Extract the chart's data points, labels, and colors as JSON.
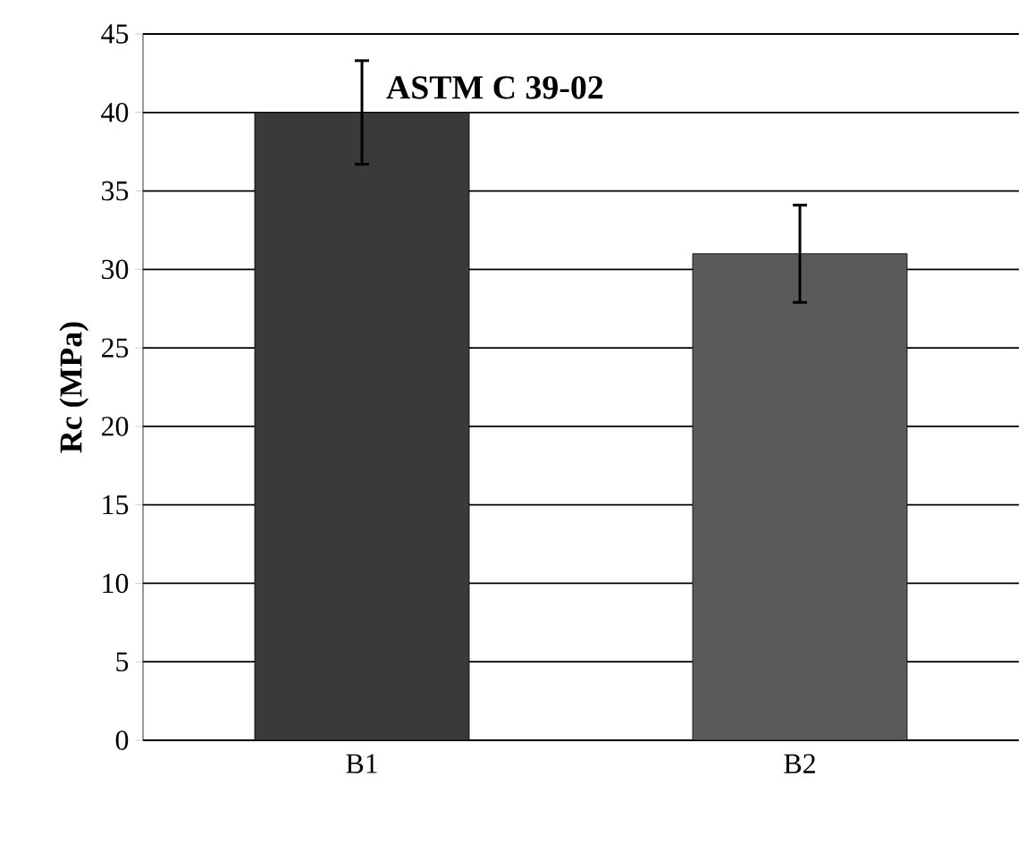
{
  "chart_data": {
    "type": "bar",
    "ylabel": "Rc (MPa)",
    "categories": [
      "B1",
      "B2"
    ],
    "values": [
      40,
      31
    ],
    "colors": [
      "#3a3a3a",
      "#5a5a5a"
    ],
    "errors": [
      3.3,
      3.1
    ],
    "ylim": [
      0,
      45
    ],
    "yticks": [
      0,
      5,
      10,
      15,
      20,
      25,
      30,
      35,
      40,
      45
    ],
    "grid": "y",
    "annotations": [
      "ASTM C 39-02"
    ]
  }
}
